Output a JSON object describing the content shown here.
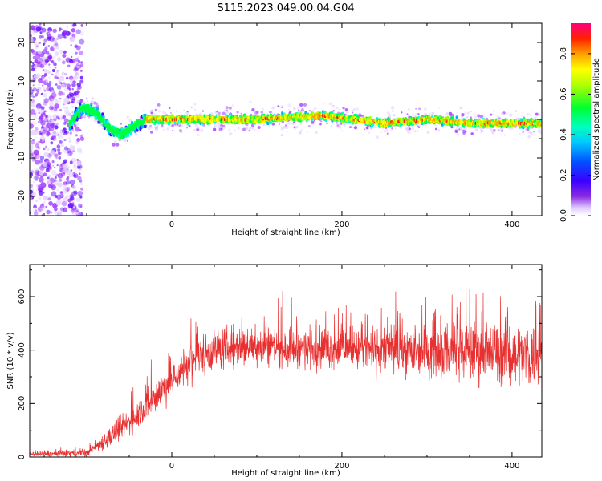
{
  "title": "S115.2023.049.00.04.G04",
  "colors": {
    "snr_line": "#e83030",
    "axis": "#000000",
    "background": "#ffffff",
    "colormap": [
      "#ffffff",
      "#e6d2ff",
      "#9b30ff",
      "#5a00ff",
      "#2030ff",
      "#00b0ff",
      "#00ffd0",
      "#00ff40",
      "#a0ff00",
      "#ffff00",
      "#ffa000",
      "#ff2000",
      "#ff0080"
    ]
  },
  "chart_data": [
    {
      "type": "heatmap",
      "name": "spectrogram",
      "xlabel": "Height of straight line (km)",
      "ylabel": "Frequency (Hz)",
      "xlim": [
        -167,
        435
      ],
      "ylim": [
        -25,
        25
      ],
      "xticks": [
        0,
        200,
        400
      ],
      "yticks": [
        -20,
        -10,
        0,
        10,
        20
      ],
      "grid": false,
      "noise_region_x": [
        -167,
        -105
      ],
      "signal_start_x": -120,
      "track_offset_hz": [
        {
          "x": -120,
          "y": -1
        },
        {
          "x": -105,
          "y": 3
        },
        {
          "x": -90,
          "y": 2
        },
        {
          "x": -75,
          "y": -2
        },
        {
          "x": -60,
          "y": -4
        },
        {
          "x": -45,
          "y": -2
        },
        {
          "x": -30,
          "y": 0
        },
        {
          "x": 0,
          "y": 0
        },
        {
          "x": 100,
          "y": 0
        },
        {
          "x": 180,
          "y": 1
        },
        {
          "x": 250,
          "y": -1
        },
        {
          "x": 300,
          "y": 0
        },
        {
          "x": 350,
          "y": -1
        },
        {
          "x": 435,
          "y": -1
        }
      ],
      "colorbar": {
        "label": "Normalized spectral amplitude",
        "range": [
          0,
          0.95
        ],
        "ticks": [
          "0.0",
          "0.2",
          "0.4",
          "0.6",
          "0.8"
        ]
      }
    },
    {
      "type": "line",
      "name": "snr",
      "xlabel": "Height of straight line (km)",
      "ylabel": "SNR (10 * v/v)",
      "xlim": [
        -167,
        435
      ],
      "ylim": [
        0,
        720
      ],
      "xticks": [
        0,
        200,
        400
      ],
      "yticks": [
        0,
        200,
        400,
        600
      ],
      "grid": false,
      "envelope": [
        {
          "x": -167,
          "mean": 10,
          "spread": 8
        },
        {
          "x": -100,
          "mean": 15,
          "spread": 15
        },
        {
          "x": -90,
          "mean": 40,
          "spread": 25
        },
        {
          "x": -70,
          "mean": 80,
          "spread": 45
        },
        {
          "x": -50,
          "mean": 130,
          "spread": 55
        },
        {
          "x": -30,
          "mean": 190,
          "spread": 65
        },
        {
          "x": -10,
          "mean": 260,
          "spread": 75
        },
        {
          "x": 10,
          "mean": 320,
          "spread": 80
        },
        {
          "x": 30,
          "mean": 380,
          "spread": 80
        },
        {
          "x": 60,
          "mean": 410,
          "spread": 85
        },
        {
          "x": 100,
          "mean": 420,
          "spread": 80
        },
        {
          "x": 150,
          "mean": 410,
          "spread": 80
        },
        {
          "x": 200,
          "mean": 405,
          "spread": 80
        },
        {
          "x": 250,
          "mean": 400,
          "spread": 90
        },
        {
          "x": 300,
          "mean": 395,
          "spread": 100
        },
        {
          "x": 350,
          "mean": 395,
          "spread": 115
        },
        {
          "x": 400,
          "mean": 385,
          "spread": 125
        },
        {
          "x": 435,
          "mean": 380,
          "spread": 130
        }
      ]
    }
  ]
}
